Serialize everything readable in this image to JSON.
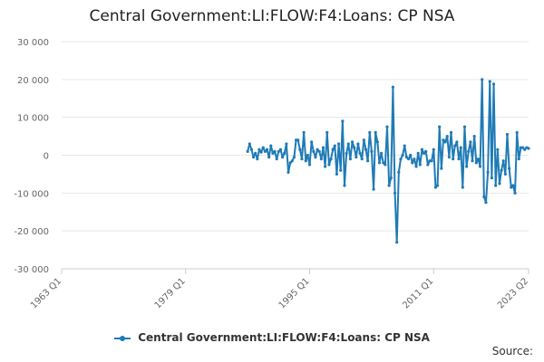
{
  "title": "Central Government:LI:FLOW:F4:Loans: CP NSA",
  "source_label": "Source:",
  "chart_data": {
    "type": "line",
    "title": "Central Government:LI:FLOW:F4:Loans: CP NSA",
    "xlabel": "",
    "ylabel": "",
    "x_range": [
      "1963 Q1",
      "2023 Q2"
    ],
    "ylim": [
      -30000,
      30000
    ],
    "y_ticks": [
      30000,
      20000,
      10000,
      0,
      -10000,
      -20000,
      -30000
    ],
    "y_tick_labels": [
      "30 000",
      "20 000",
      "10 000",
      "0",
      "-10 000",
      "-20 000",
      "-30 000"
    ],
    "x_ticks": [
      "1963 Q1",
      "1979 Q1",
      "1995 Q1",
      "2011 Q1",
      "2023 Q2"
    ],
    "grid": "horizontal",
    "legend_position": "bottom",
    "color": "#1f7bb6",
    "series": [
      {
        "name": "Central Government:LI:FLOW:F4:Loans: CP NSA",
        "x": [
          "1987 Q1",
          "1987 Q2",
          "1987 Q3",
          "1987 Q4",
          "1988 Q1",
          "1988 Q2",
          "1988 Q3",
          "1988 Q4",
          "1989 Q1",
          "1989 Q2",
          "1989 Q3",
          "1989 Q4",
          "1990 Q1",
          "1990 Q2",
          "1990 Q3",
          "1990 Q4",
          "1991 Q1",
          "1991 Q2",
          "1991 Q3",
          "1991 Q4",
          "1992 Q1",
          "1992 Q2",
          "1992 Q3",
          "1992 Q4",
          "1993 Q1",
          "1993 Q2",
          "1993 Q3",
          "1993 Q4",
          "1994 Q1",
          "1994 Q2",
          "1994 Q3",
          "1994 Q4",
          "1995 Q1",
          "1995 Q2",
          "1995 Q3",
          "1995 Q4",
          "1996 Q1",
          "1996 Q2",
          "1996 Q3",
          "1996 Q4",
          "1997 Q1",
          "1997 Q2",
          "1997 Q3",
          "1997 Q4",
          "1998 Q1",
          "1998 Q2",
          "1998 Q3",
          "1998 Q4",
          "1999 Q1",
          "1999 Q2",
          "1999 Q3",
          "1999 Q4",
          "2000 Q1",
          "2000 Q2",
          "2000 Q3",
          "2000 Q4",
          "2001 Q1",
          "2001 Q2",
          "2001 Q3",
          "2001 Q4",
          "2002 Q1",
          "2002 Q2",
          "2002 Q3",
          "2002 Q4",
          "2003 Q1",
          "2003 Q2",
          "2003 Q3",
          "2003 Q4",
          "2004 Q1",
          "2004 Q2",
          "2004 Q3",
          "2004 Q4",
          "2005 Q1",
          "2005 Q2",
          "2005 Q3",
          "2005 Q4",
          "2006 Q1",
          "2006 Q2",
          "2006 Q3",
          "2006 Q4",
          "2007 Q1",
          "2007 Q2",
          "2007 Q3",
          "2007 Q4",
          "2008 Q1",
          "2008 Q2",
          "2008 Q3",
          "2008 Q4",
          "2009 Q1",
          "2009 Q2",
          "2009 Q3",
          "2009 Q4",
          "2010 Q1",
          "2010 Q2",
          "2010 Q3",
          "2010 Q4",
          "2011 Q1",
          "2011 Q2",
          "2011 Q3",
          "2011 Q4",
          "2012 Q1",
          "2012 Q2",
          "2012 Q3",
          "2012 Q4",
          "2013 Q1",
          "2013 Q2",
          "2013 Q3",
          "2013 Q4",
          "2014 Q1",
          "2014 Q2",
          "2014 Q3",
          "2014 Q4",
          "2015 Q1",
          "2015 Q2",
          "2015 Q3",
          "2015 Q4",
          "2016 Q1",
          "2016 Q2",
          "2016 Q3",
          "2016 Q4",
          "2017 Q1",
          "2017 Q2",
          "2017 Q3",
          "2017 Q4",
          "2018 Q1",
          "2018 Q2",
          "2018 Q3",
          "2018 Q4",
          "2019 Q1",
          "2019 Q2",
          "2019 Q3",
          "2019 Q4",
          "2020 Q1",
          "2020 Q2",
          "2020 Q3",
          "2020 Q4",
          "2021 Q1",
          "2021 Q2",
          "2021 Q3",
          "2021 Q4",
          "2022 Q1",
          "2022 Q2",
          "2022 Q3",
          "2022 Q4",
          "2023 Q1",
          "2023 Q2"
        ],
        "values": [
          1000,
          3000,
          1500,
          -500,
          500,
          -1000,
          1500,
          800,
          2000,
          1000,
          1500,
          -500,
          2500,
          500,
          1000,
          -1000,
          1000,
          1500,
          -500,
          500,
          3000,
          -4500,
          -2000,
          -1500,
          -500,
          4000,
          4000,
          1500,
          -1000,
          6000,
          -1500,
          0,
          -2500,
          3500,
          1000,
          -500,
          1500,
          1000,
          -1000,
          2000,
          -3000,
          6000,
          -2500,
          -1000,
          1500,
          2500,
          -5000,
          3000,
          -4000,
          9000,
          -8000,
          500,
          3000,
          -1000,
          3500,
          2000,
          -500,
          3000,
          500,
          -1000,
          4000,
          1500,
          -1500,
          6000,
          1000,
          -9000,
          6000,
          3500,
          -2000,
          500,
          -2000,
          -2500,
          7500,
          -8000,
          -6000,
          18000,
          -10000,
          -23000,
          -4500,
          -1000,
          0,
          2500,
          -500,
          -1000,
          0,
          -2000,
          -1000,
          -3000,
          500,
          -2500,
          1500,
          500,
          1000,
          -2500,
          -1500,
          -1500,
          1500,
          -8500,
          -8000,
          7500,
          -3500,
          4000,
          3500,
          5000,
          -500,
          6000,
          -1000,
          2500,
          3500,
          -1000,
          2000,
          -8500,
          7500,
          -3000,
          1000,
          3500,
          -1500,
          5000,
          -2000,
          -1000,
          -3000,
          20000,
          -11000,
          -12500,
          -4500,
          19500,
          -6000,
          18800,
          -8000,
          1500,
          -7500,
          -4000,
          -1500,
          -5000,
          5500,
          -3500,
          -8500,
          -8000,
          -10000,
          6000,
          -1000,
          2000,
          2000,
          1500,
          2000,
          1800
        ]
      }
    ]
  }
}
